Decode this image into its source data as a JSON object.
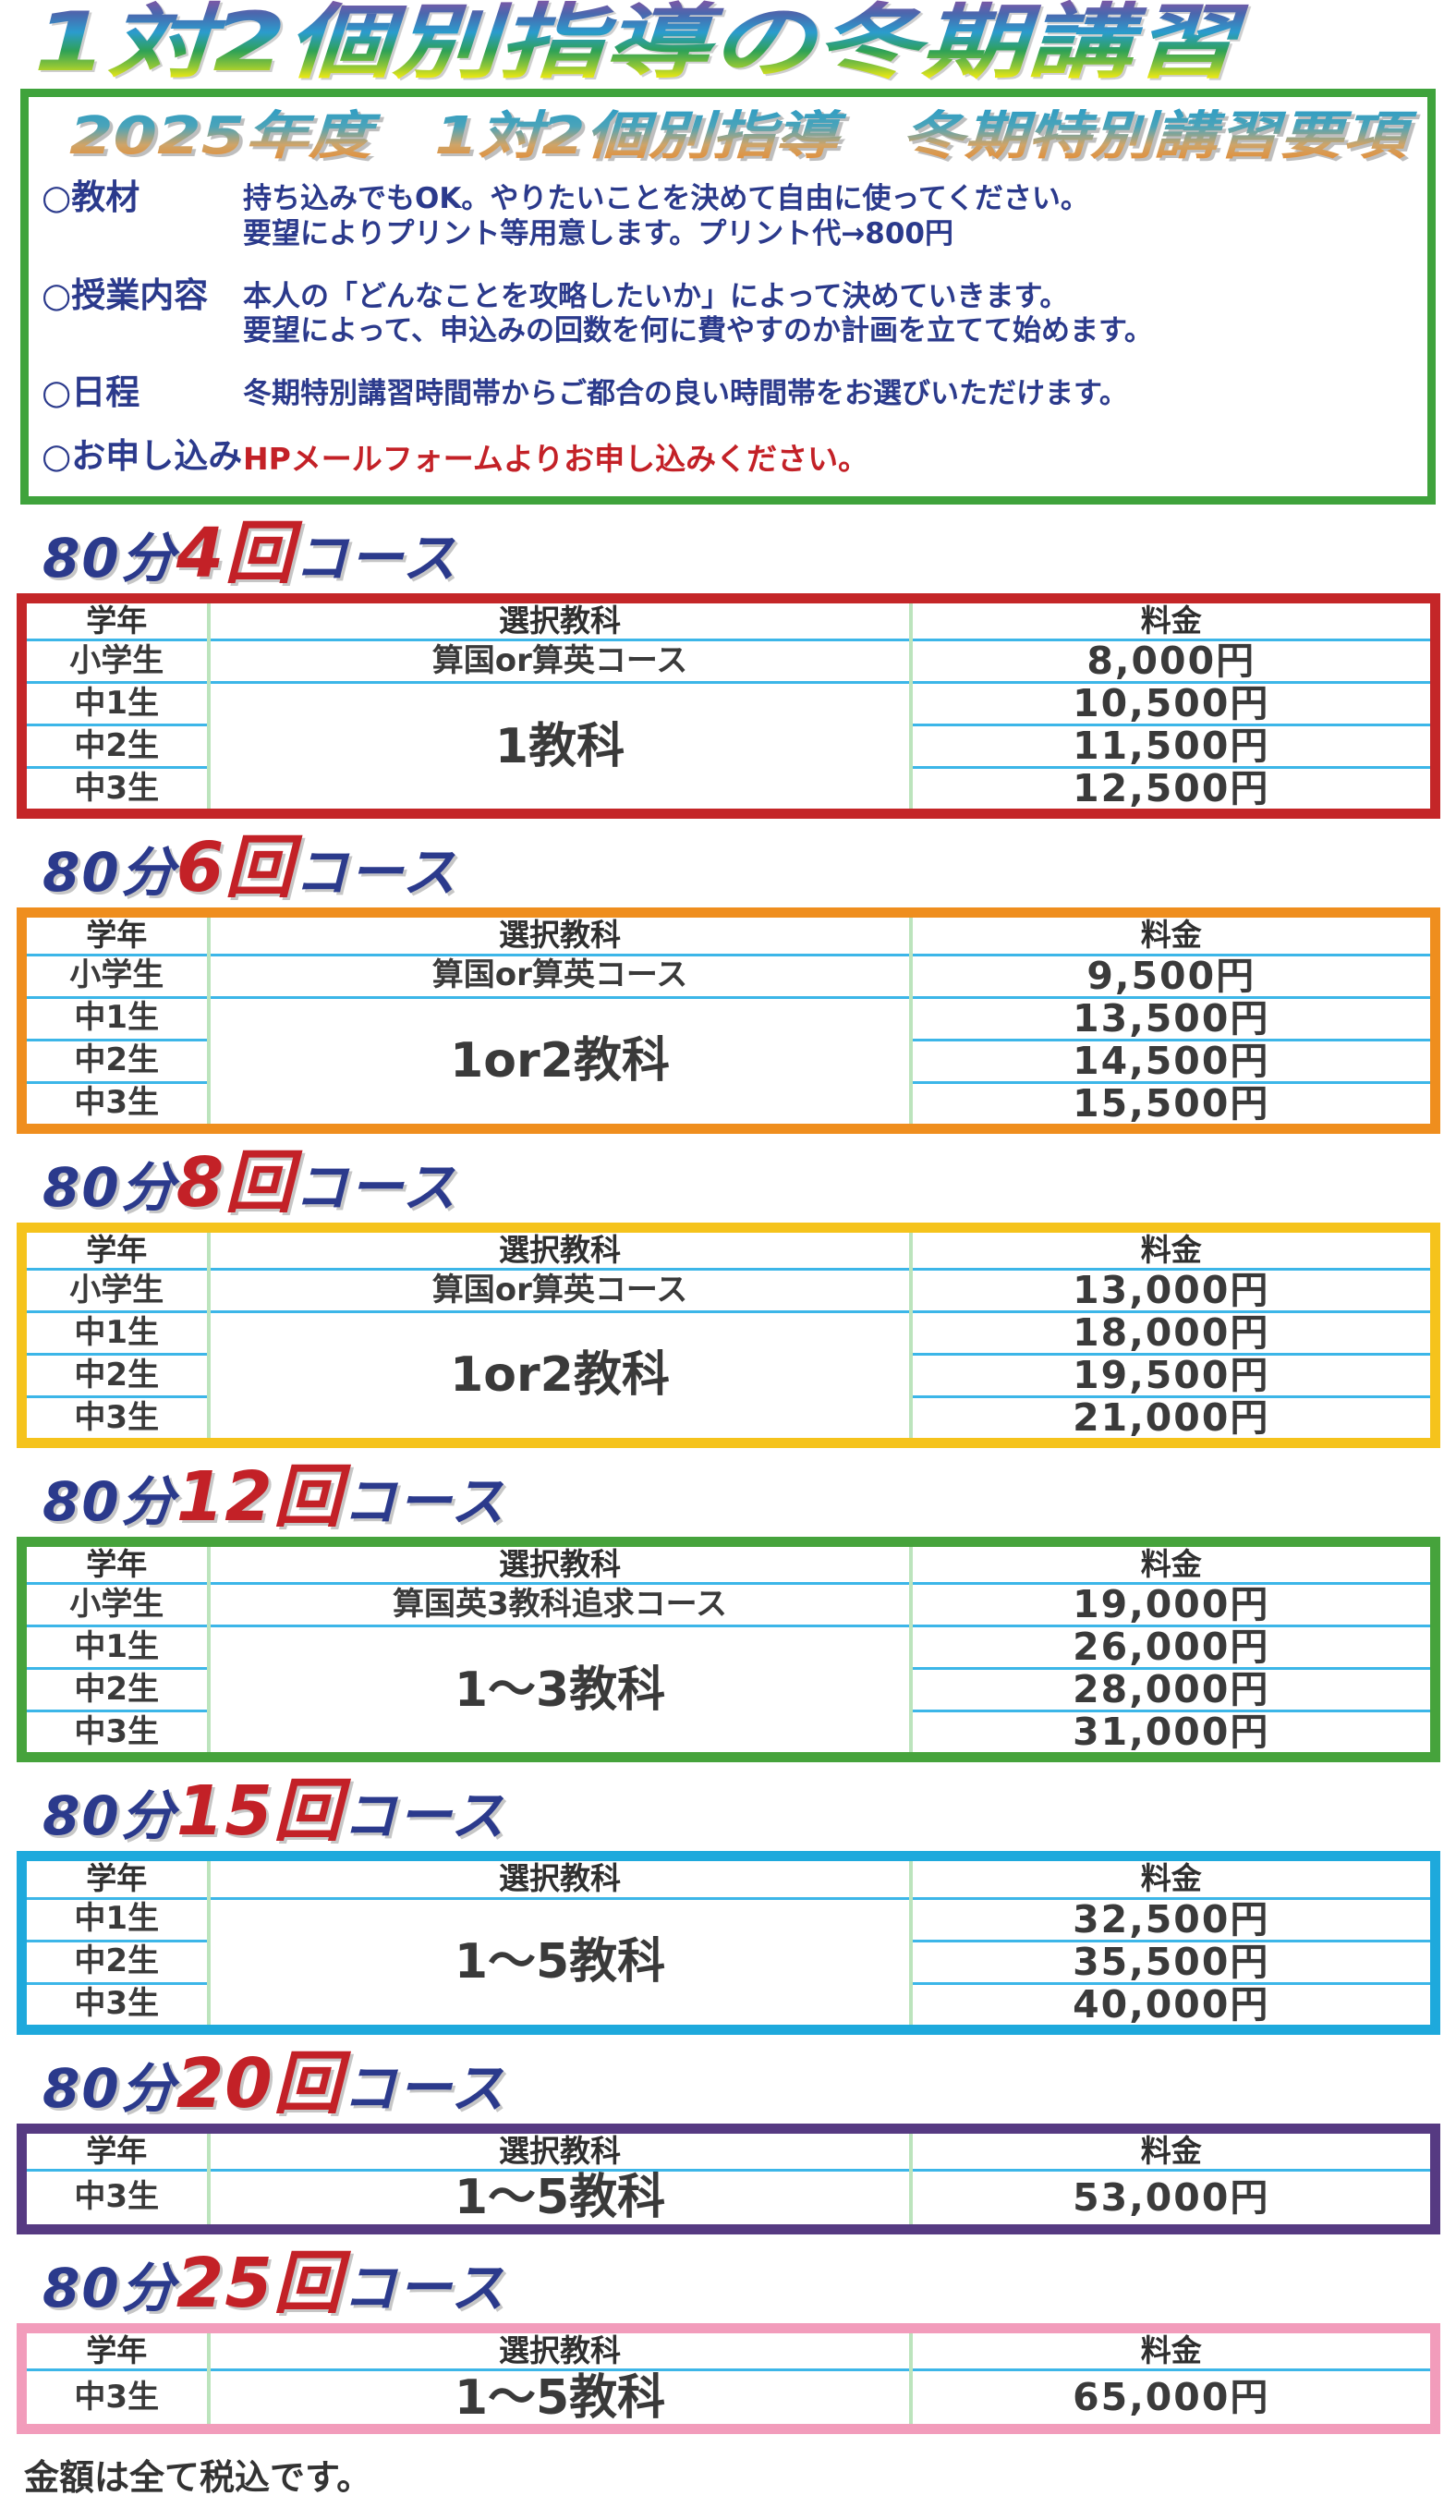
{
  "page": {
    "main_title": "1対2個別指導の冬期講習",
    "footer_note": "金額は全て税込です。"
  },
  "colors": {
    "navy_text": "#2b3a8c",
    "red_text": "#c32127",
    "info_box_border": "#3fa33c",
    "row_line": "#3cb6e8",
    "column_line": "#bce4bd",
    "table_borders": [
      "#c42628",
      "#ef8e1e",
      "#f5c31c",
      "#46a33c",
      "#1ea9dc",
      "#563a82",
      "#f29cbb"
    ]
  },
  "info_box": {
    "title": "2025年度　1対2個別指導　冬期特別講習要項",
    "items": [
      {
        "label": "○教材",
        "lines": [
          "持ち込みでもOK。やりたいことを決めて自由に使ってください。",
          "要望によりプリント等用意します。プリント代→800円"
        ]
      },
      {
        "label": "○授業内容",
        "lines": [
          "本人の「どんなことを攻略したいか」によって決めていきます。",
          "要望によって、申込みの回数を何に費やすのか計画を立てて始めます。"
        ]
      },
      {
        "label": "○日程",
        "lines": [
          "冬期特別講習時間帯からご都合の良い時間帯をお選びいただけます。"
        ]
      },
      {
        "label": "○お申し込み",
        "lines": [
          "HPメールフォームよりお申し込みください。"
        ]
      }
    ]
  },
  "table_headers": {
    "grade": "学年",
    "subject": "選択教科",
    "price": "料金"
  },
  "courses": [
    {
      "prefix": "80分",
      "count": "4回",
      "suffix": "コース",
      "border_color": "#c42628",
      "span_subject": "1教科",
      "rows": [
        {
          "grade": "小学生",
          "subject": "算国or算英コース",
          "price": "8,000円"
        },
        {
          "grade": "中1生",
          "price": "10,500円"
        },
        {
          "grade": "中2生",
          "price": "11,500円"
        },
        {
          "grade": "中3生",
          "price": "12,500円"
        }
      ]
    },
    {
      "prefix": "80分",
      "count": "6回",
      "suffix": "コース",
      "border_color": "#ef8e1e",
      "span_subject": "1or2教科",
      "rows": [
        {
          "grade": "小学生",
          "subject": "算国or算英コース",
          "price": "9,500円"
        },
        {
          "grade": "中1生",
          "price": "13,500円"
        },
        {
          "grade": "中2生",
          "price": "14,500円"
        },
        {
          "grade": "中3生",
          "price": "15,500円"
        }
      ]
    },
    {
      "prefix": "80分",
      "count": "8回",
      "suffix": "コース",
      "border_color": "#f5c31c",
      "span_subject": "1or2教科",
      "rows": [
        {
          "grade": "小学生",
          "subject": "算国or算英コース",
          "price": "13,000円"
        },
        {
          "grade": "中1生",
          "price": "18,000円"
        },
        {
          "grade": "中2生",
          "price": "19,500円"
        },
        {
          "grade": "中3生",
          "price": "21,000円"
        }
      ]
    },
    {
      "prefix": "80分",
      "count": "12回",
      "suffix": "コース",
      "border_color": "#46a33c",
      "span_subject": "1〜3教科",
      "rows": [
        {
          "grade": "小学生",
          "subject": "算国英3教科追求コース",
          "price": "19,000円"
        },
        {
          "grade": "中1生",
          "price": "26,000円"
        },
        {
          "grade": "中2生",
          "price": "28,000円"
        },
        {
          "grade": "中3生",
          "price": "31,000円"
        }
      ]
    },
    {
      "prefix": "80分",
      "count": "15回",
      "suffix": "コース",
      "border_color": "#1ea9dc",
      "span_subject": "1〜5教科",
      "rows": [
        {
          "grade": "中1生",
          "price": "32,500円"
        },
        {
          "grade": "中2生",
          "price": "35,500円"
        },
        {
          "grade": "中3生",
          "price": "40,000円"
        }
      ]
    },
    {
      "prefix": "80分",
      "count": "20回",
      "suffix": "コース",
      "border_color": "#563a82",
      "span_subject": "1〜5教科",
      "rows": [
        {
          "grade": "中3生",
          "price": "53,000円"
        }
      ]
    },
    {
      "prefix": "80分",
      "count": "25回",
      "suffix": "コース",
      "border_color": "#f29cbb",
      "span_subject": "1〜5教科",
      "rows": [
        {
          "grade": "中3生",
          "price": "65,000円"
        }
      ]
    }
  ]
}
